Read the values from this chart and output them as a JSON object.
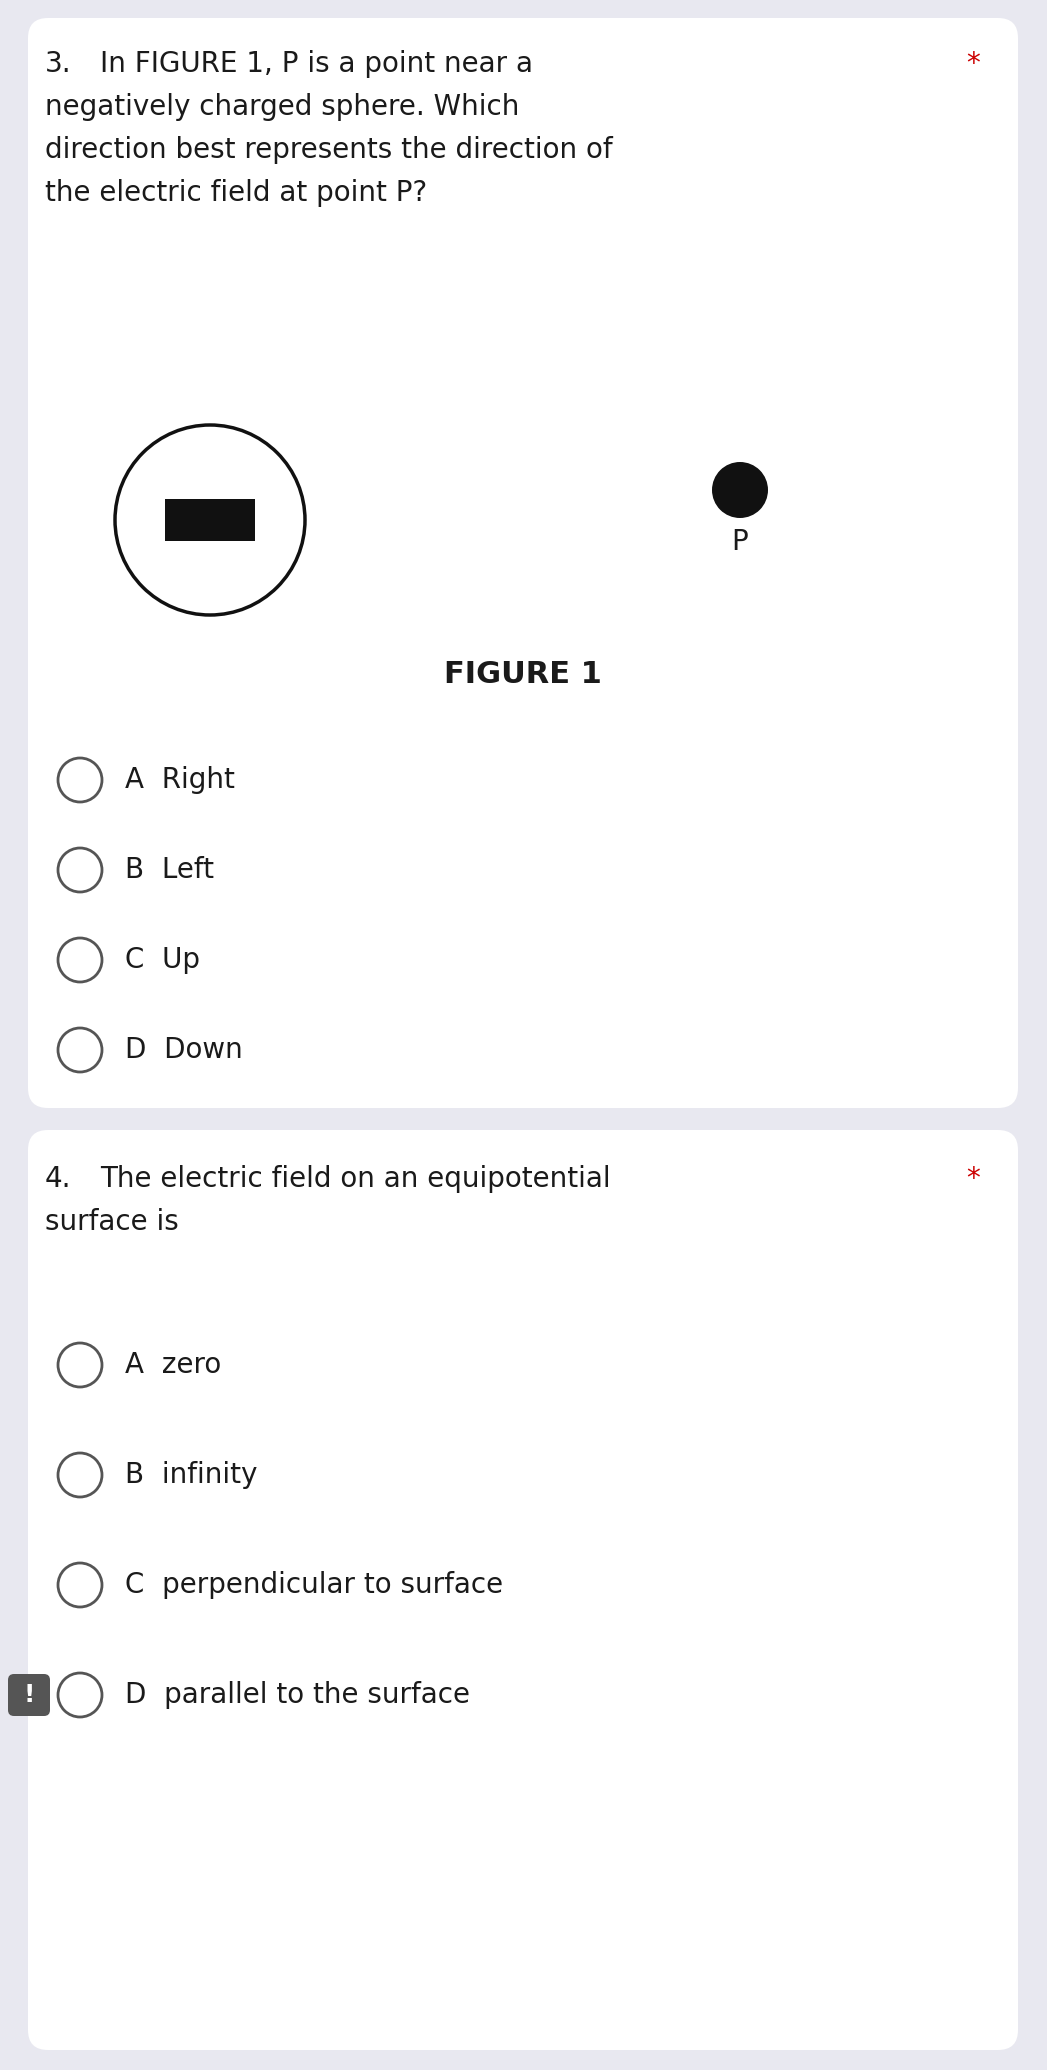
{
  "bg_color": "#e8e8f0",
  "card_bg": "#ffffff",
  "q3": {
    "number": "3.",
    "text_line1": "In FIGURE 1, P is a point near a",
    "text_line2": "negatively charged sphere. Which",
    "text_line3": "direction best represents the direction of",
    "text_line4": "the electric field at point P?",
    "star": "*",
    "star_color": "#cc0000",
    "figure_label": "FIGURE 1",
    "options": [
      "A  Right",
      "B  Left",
      "C  Up",
      "D  Down"
    ]
  },
  "q4": {
    "number": "4.",
    "text_line1": "The electric field on an equipotential",
    "text_line2": "surface is",
    "star": "*",
    "star_color": "#cc0000",
    "options": [
      "A  zero",
      "B  infinity",
      "C  perpendicular to surface",
      "D  parallel to the surface"
    ],
    "exclamation_option_index": 3
  },
  "text_color": "#1a1a1a",
  "option_circle_color": "#555555",
  "font_size_question": 20,
  "font_size_option": 20,
  "font_size_figure_label": 22
}
